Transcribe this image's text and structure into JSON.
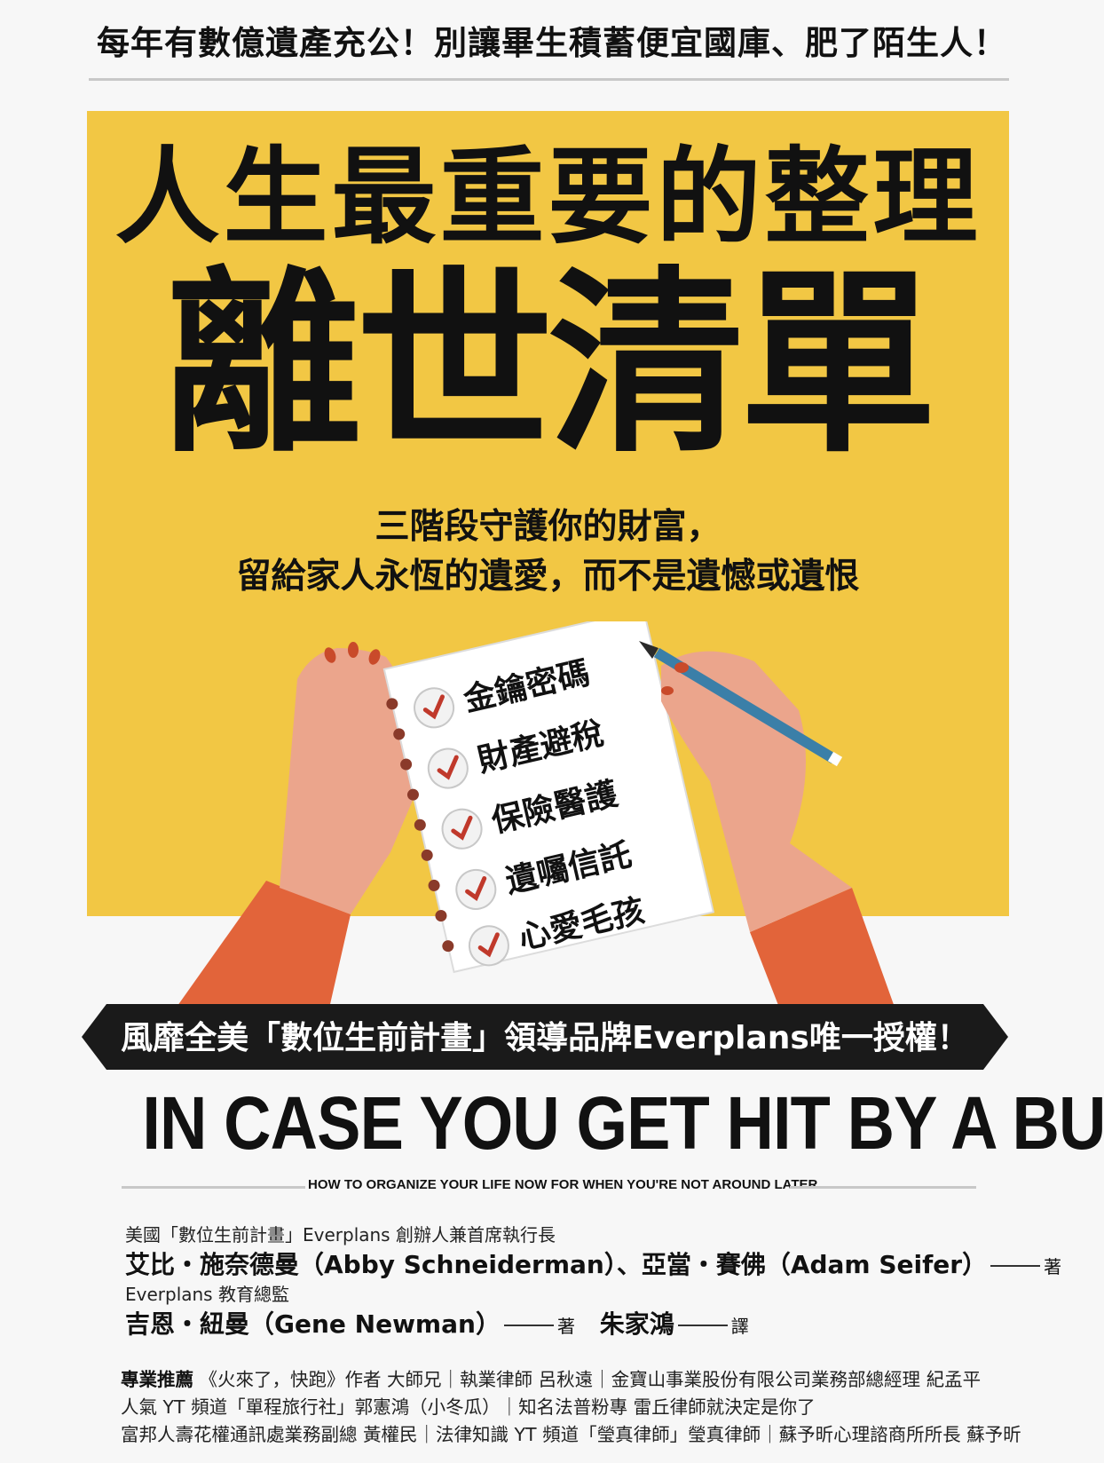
{
  "cover": {
    "top_tagline": "每年有數億遺產充公！別讓畢生積蓄便宜國庫、肥了陌生人！",
    "title_line1": "人生最重要的整理",
    "title_line2": "離世清單",
    "subtitle_line1": "三階段守護你的財富，",
    "subtitle_line2": "留給家人永恆的遺愛，而不是遺憾或遺恨",
    "checklist": [
      "金鑰密碼",
      "財產避稅",
      "保險醫護",
      "遺囑信託",
      "心愛毛孩"
    ],
    "banner": "風靡全美「數位生前計畫」領導品牌Everplans唯一授權！",
    "english_title": "IN CASE YOU GET HIT BY A BUS",
    "english_subtitle": "HOW TO ORGANIZE YOUR LIFE NOW FOR WHEN YOU'RE NOT AROUND LATER",
    "credits": {
      "author_role": "美國「數位生前計畫」Everplans 創辦人兼首席執行長",
      "authors": "艾比・施奈德曼（Abby Schneiderman）、亞當・賽佛（Adam Seifer）",
      "author_suffix": "著",
      "coauthor_role": "Everplans 教育總監",
      "coauthor": "吉恩・紐曼（Gene Newman）",
      "coauthor_suffix": "著",
      "translator": "朱家鴻",
      "translator_suffix": "譯"
    },
    "recommend": {
      "label": "專業推薦",
      "line1": "《火來了，快跑》作者 大師兄｜執業律師 呂秋遠｜金寶山事業股份有限公司業務部總經理 紀孟平",
      "line2": "人氣 YT 頻道「單程旅行社」郭憲鴻（小冬瓜）｜知名法普粉專 雷丘律師就決定是你了",
      "line3": "富邦人壽花權通訊處業務副總 黃權民｜法律知識 YT 頻道「瑩真律師」瑩真律師｜蘇予昕心理諮商所所長 蘇予昕"
    },
    "colors": {
      "yellow": "#f2c744",
      "sleeve": "#e2643a",
      "skin": "#eba58c",
      "check": "#c0392b",
      "pencil": "#3b7fa8"
    }
  }
}
